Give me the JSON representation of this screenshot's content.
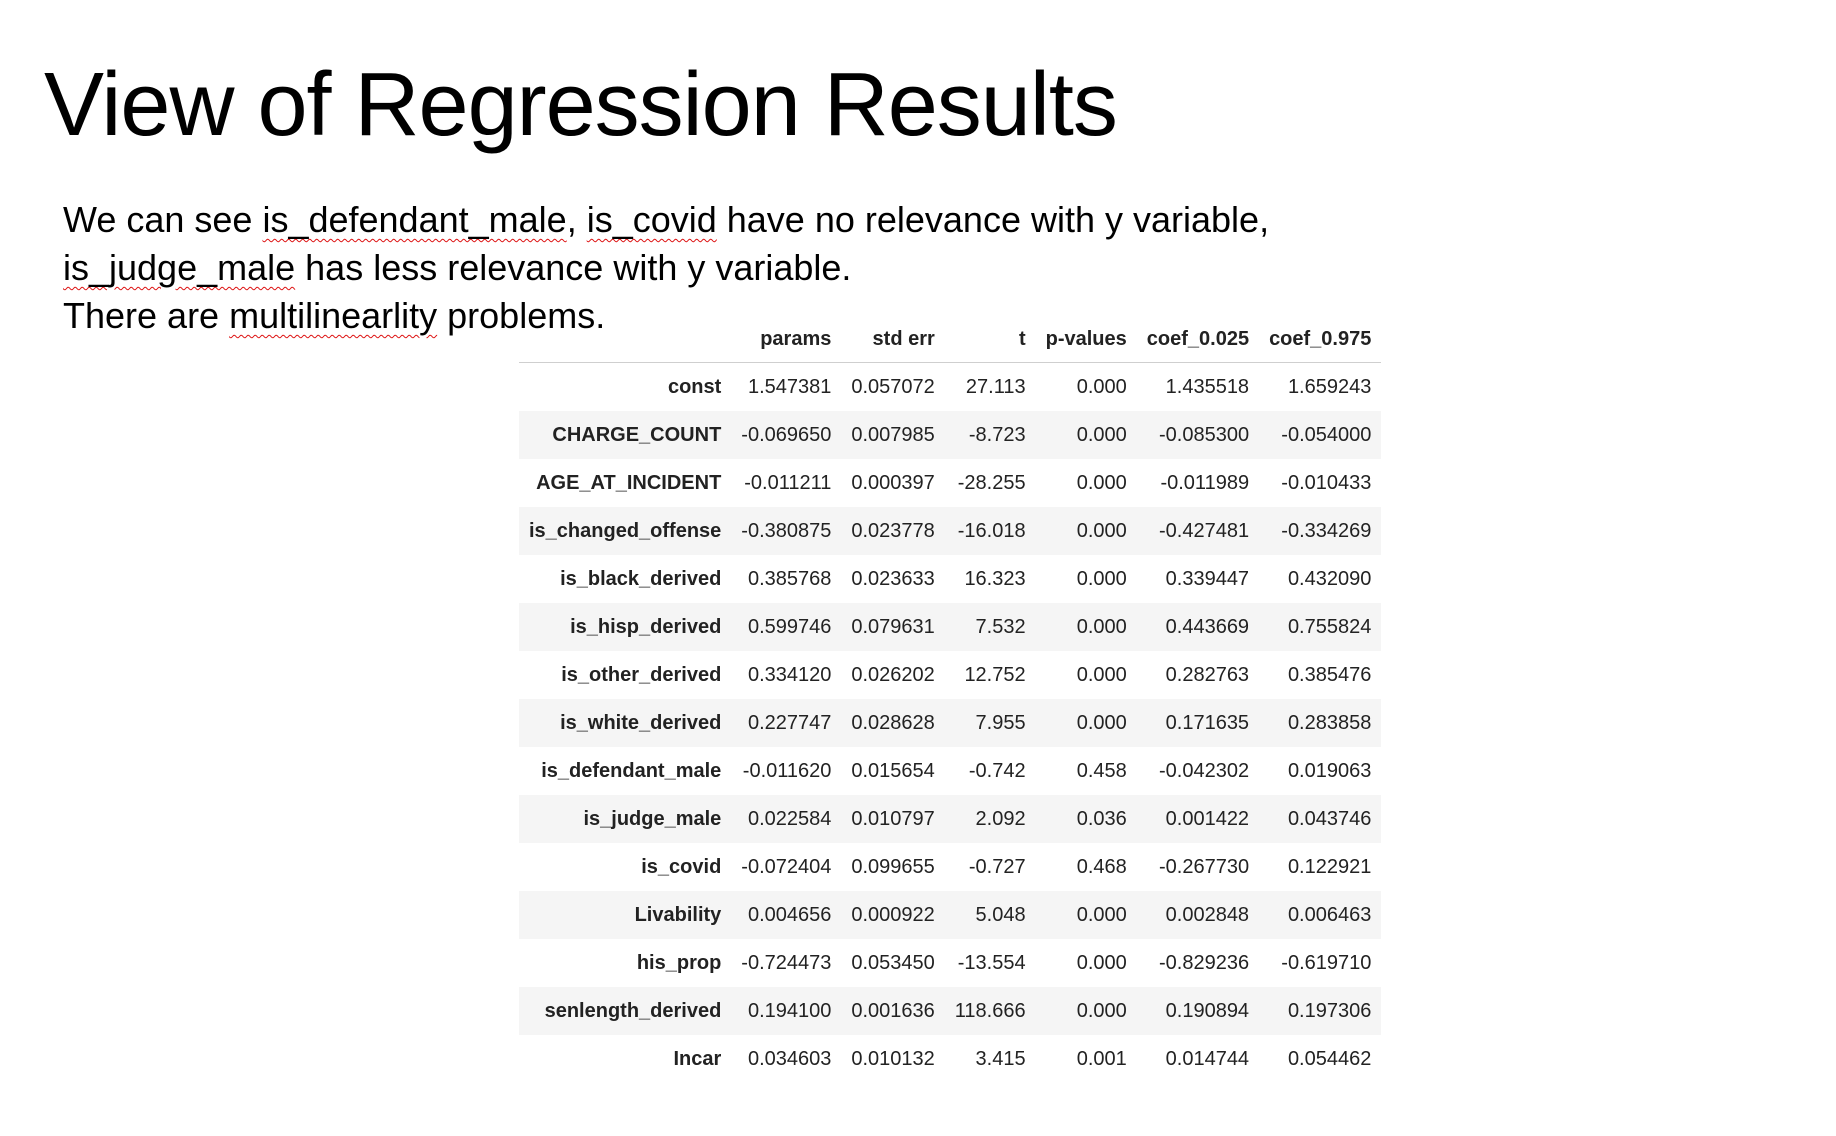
{
  "slide": {
    "title": "View of Regression Results",
    "line1": {
      "pre": "We can see ",
      "var1": "is_defendant_male",
      "sep": ", ",
      "var2": "is_covid",
      "post": " have no relevance with y variable,"
    },
    "line2": {
      "var": "is_judge_male",
      "post": " has less relevance with y variable."
    },
    "line3": {
      "pre": "There are ",
      "word": "multilinearlity",
      "post": " problems."
    }
  },
  "table": {
    "columns": [
      "",
      "params",
      "std err",
      "t",
      "p-values",
      "coef_0.025",
      "coef_0.975"
    ],
    "rows": [
      [
        "const",
        "1.547381",
        "0.057072",
        "27.113",
        "0.000",
        "1.435518",
        "1.659243"
      ],
      [
        "CHARGE_COUNT",
        "-0.069650",
        "0.007985",
        "-8.723",
        "0.000",
        "-0.085300",
        "-0.054000"
      ],
      [
        "AGE_AT_INCIDENT",
        "-0.011211",
        "0.000397",
        "-28.255",
        "0.000",
        "-0.011989",
        "-0.010433"
      ],
      [
        "is_changed_offense",
        "-0.380875",
        "0.023778",
        "-16.018",
        "0.000",
        "-0.427481",
        "-0.334269"
      ],
      [
        "is_black_derived",
        "0.385768",
        "0.023633",
        "16.323",
        "0.000",
        "0.339447",
        "0.432090"
      ],
      [
        "is_hisp_derived",
        "0.599746",
        "0.079631",
        "7.532",
        "0.000",
        "0.443669",
        "0.755824"
      ],
      [
        "is_other_derived",
        "0.334120",
        "0.026202",
        "12.752",
        "0.000",
        "0.282763",
        "0.385476"
      ],
      [
        "is_white_derived",
        "0.227747",
        "0.028628",
        "7.955",
        "0.000",
        "0.171635",
        "0.283858"
      ],
      [
        "is_defendant_male",
        "-0.011620",
        "0.015654",
        "-0.742",
        "0.458",
        "-0.042302",
        "0.019063"
      ],
      [
        "is_judge_male",
        "0.022584",
        "0.010797",
        "2.092",
        "0.036",
        "0.001422",
        "0.043746"
      ],
      [
        "is_covid",
        "-0.072404",
        "0.099655",
        "-0.727",
        "0.468",
        "-0.267730",
        "0.122921"
      ],
      [
        "Livability",
        "0.004656",
        "0.000922",
        "5.048",
        "0.000",
        "0.002848",
        "0.006463"
      ],
      [
        "his_prop",
        "-0.724473",
        "0.053450",
        "-13.554",
        "0.000",
        "-0.829236",
        "-0.619710"
      ],
      [
        "senlength_derived",
        "0.194100",
        "0.001636",
        "118.666",
        "0.000",
        "0.190894",
        "0.197306"
      ],
      [
        "Incar",
        "0.034603",
        "0.010132",
        "3.415",
        "0.001",
        "0.014744",
        "0.054462"
      ]
    ]
  }
}
